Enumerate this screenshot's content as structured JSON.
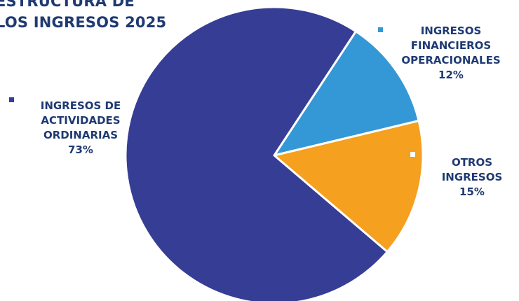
{
  "title": {
    "line1": "ESTRUCTURA DE",
    "line2": "LOS INGRESOS 2025"
  },
  "chart_data": {
    "type": "pie",
    "slices": [
      {
        "name_lines": [
          "INGRESOS DE",
          "ACTIVIDADES",
          "ORDINARIAS"
        ],
        "value": 73,
        "value_label": "73%",
        "color": "#363d95"
      },
      {
        "name_lines": [
          "INGRESOS",
          "FINANCIEROS",
          "OPERACIONALES"
        ],
        "value": 12,
        "value_label": "12%",
        "color": "#3498d6"
      },
      {
        "name_lines": [
          "OTROS",
          "INGRESOS"
        ],
        "value": 15,
        "value_label": "15%",
        "color": "#f5a01e"
      }
    ],
    "legend": "beside-slices",
    "label_color": "#1f3a73"
  }
}
